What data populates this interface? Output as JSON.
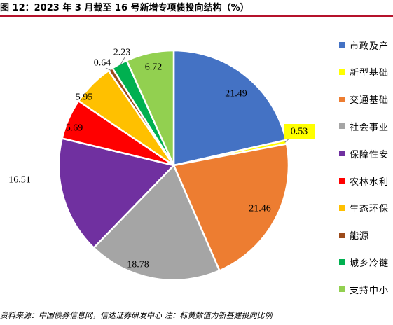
{
  "header": {
    "title": "图 12：2023 年 3 月截至 16 号新增专项债投向结构（%）"
  },
  "footer": {
    "source": "资料来源：中国债券信息网，信达证券研发中心 注：标黄数值为新基建投向比例"
  },
  "chart_data": {
    "type": "pie",
    "title": "2023 年 3 月截至 16 号新增专项债投向结构（%）",
    "legend_position": "right",
    "start_angle_deg": 0,
    "direction": "clockwise",
    "slices": [
      {
        "label": "市政及产业园区",
        "legend": "市政及产",
        "value": 21.49,
        "value_text": "21.49",
        "color": "#4472c4",
        "highlight": false
      },
      {
        "label": "新型基础设施",
        "legend": "新型基础",
        "value": 0.53,
        "value_text": "0.53",
        "color": "#ffff00",
        "highlight": true
      },
      {
        "label": "交通基础设施",
        "legend": "交通基础",
        "value": 21.46,
        "value_text": "21.46",
        "color": "#ed7d31",
        "highlight": false
      },
      {
        "label": "社会事业",
        "legend": "社会事业",
        "value": 18.78,
        "value_text": "18.78",
        "color": "#a5a5a5",
        "highlight": false
      },
      {
        "label": "保障性安居工程",
        "legend": "保障性安",
        "value": 16.51,
        "value_text": "16.51",
        "color": "#7030a0",
        "highlight": false
      },
      {
        "label": "农林水利",
        "legend": "农林水利",
        "value": 5.69,
        "value_text": "5.69",
        "color": "#ff0000",
        "highlight": false
      },
      {
        "label": "生态环保",
        "legend": "生态环保",
        "value": 5.95,
        "value_text": "5.95",
        "color": "#ffc000",
        "highlight": false
      },
      {
        "label": "能源",
        "legend": "能源",
        "value": 0.64,
        "value_text": "0.64",
        "color": "#9c4a1a",
        "highlight": false
      },
      {
        "label": "城乡冷链",
        "legend": "城乡冷链",
        "value": 2.23,
        "value_text": "2.23",
        "color": "#00b050",
        "highlight": false
      },
      {
        "label": "支持中小",
        "legend": "支持中小",
        "value": 6.72,
        "value_text": "6.72",
        "color": "#92d050",
        "highlight": false
      }
    ]
  }
}
